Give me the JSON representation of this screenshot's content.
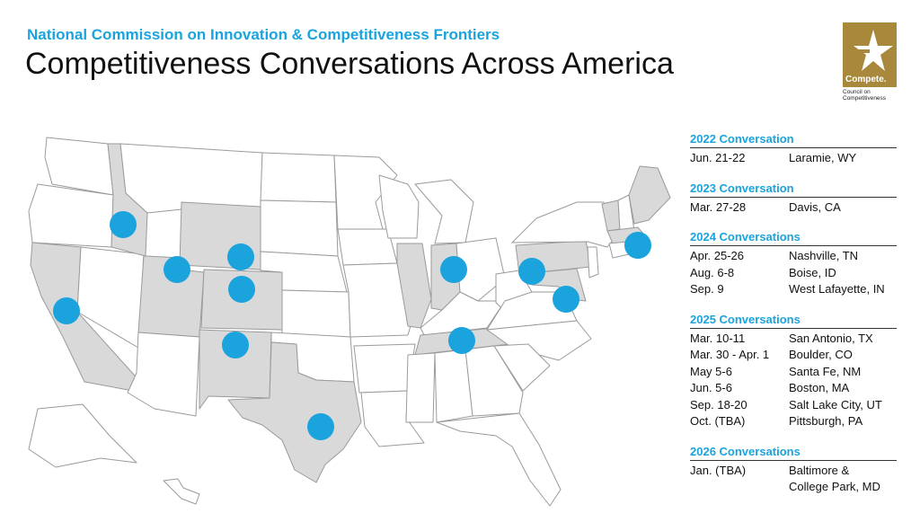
{
  "header": {
    "subtitle": "National Commission on Innovation & Competitiveness Frontiers",
    "title": "Competitiveness Conversations Across America"
  },
  "logo": {
    "word": "Compete.",
    "sub": "Council on Competitiveness",
    "color": "#a8893b"
  },
  "colors": {
    "accent": "#1aa3dd",
    "highlight_state": "#d9d9d9",
    "marker": "#1aa3dd"
  },
  "map": {
    "highlighted_states": [
      "Idaho",
      "Utah",
      "Colorado",
      "Wyoming",
      "New Mexico",
      "California",
      "Texas",
      "Illinois",
      "Indiana",
      "Tennessee",
      "Pennsylvania",
      "Maryland",
      "Vermont",
      "Maine",
      "Massachusetts"
    ],
    "markers": [
      "Boise, ID",
      "Salt Lake City, UT",
      "Laramie, WY",
      "Boulder, CO",
      "Santa Fe, NM",
      "Davis, CA",
      "San Antonio, TX",
      "West Lafayette, IN",
      "Nashville, TN",
      "Pittsburgh, PA",
      "Baltimore & College Park, MD",
      "Boston, MA"
    ]
  },
  "schedule": [
    {
      "heading": "2022 Conversation",
      "rows": [
        {
          "date": "Jun. 21-22",
          "place": "Laramie, WY"
        }
      ]
    },
    {
      "heading": "2023 Conversation",
      "rows": [
        {
          "date": "Mar. 27-28",
          "place": "Davis, CA"
        }
      ]
    },
    {
      "heading": "2024 Conversations",
      "rows": [
        {
          "date": "Apr. 25-26",
          "place": "Nashville, TN"
        },
        {
          "date": "Aug. 6-8",
          "place": "Boise, ID"
        },
        {
          "date": "Sep. 9",
          "place": "West Lafayette, IN"
        }
      ]
    },
    {
      "heading": "2025 Conversations",
      "rows": [
        {
          "date": "Mar. 10-11",
          "place": "San Antonio, TX"
        },
        {
          "date": "Mar. 30 - Apr. 1",
          "place": "Boulder, CO"
        },
        {
          "date": "May 5-6",
          "place": "Santa Fe, NM"
        },
        {
          "date": "Jun. 5-6",
          "place": "Boston, MA"
        },
        {
          "date": "Sep. 18-20",
          "place": "Salt Lake City, UT"
        },
        {
          "date": "Oct. (TBA)",
          "place": "Pittsburgh, PA"
        }
      ]
    },
    {
      "heading": "2026 Conversations",
      "rows": [
        {
          "date": "Jan. (TBA)",
          "place": "Baltimore &\nCollege Park, MD"
        }
      ]
    }
  ]
}
